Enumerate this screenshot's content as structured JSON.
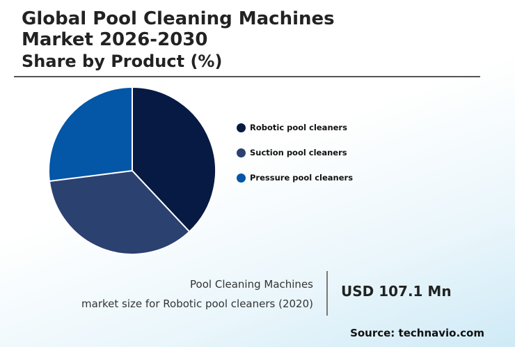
{
  "header": {
    "title": "Global Pool Cleaning Machines Market 2026-2030",
    "subtitle": "Share by Product (%)"
  },
  "chart_data": {
    "type": "pie",
    "title": "Global Pool Cleaning Machines Market 2026-2030",
    "subtitle": "Share by Product (%)",
    "slices": [
      {
        "name": "Robotic pool cleaners",
        "value": 38,
        "color": "#071a43"
      },
      {
        "name": "Suction pool cleaners",
        "value": 35,
        "color": "#2b4170"
      },
      {
        "name": "Pressure pool cleaners",
        "value": 27,
        "color": "#0456a6"
      }
    ],
    "legend_position": "right"
  },
  "info": {
    "line1": "Pool Cleaning Machines",
    "line2": "market size for Robotic pool cleaners (2020)",
    "value": "USD 107.1 Mn"
  },
  "source": "Source: technavio.com"
}
